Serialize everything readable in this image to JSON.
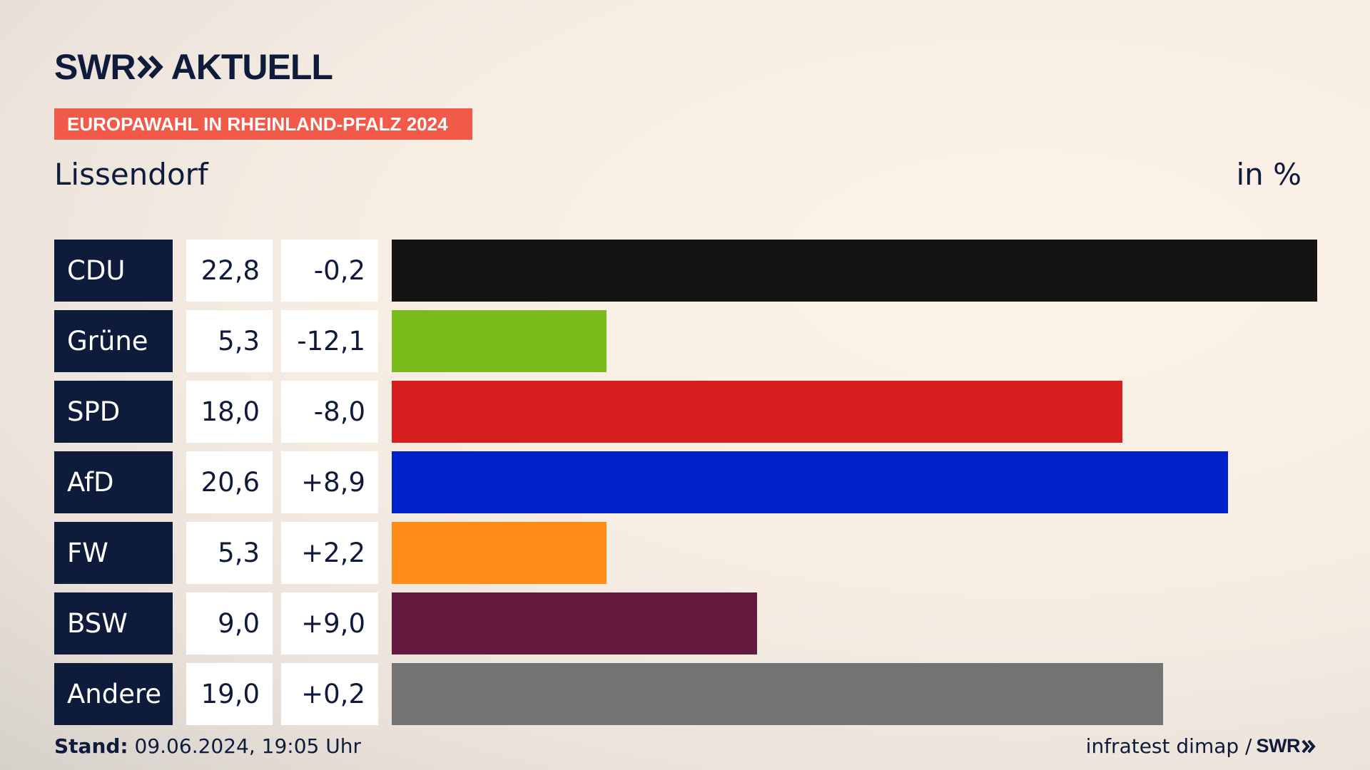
{
  "header": {
    "brand_left": "SWR",
    "brand_right": "AKTUELL",
    "logo_icon": "double-chevron-icon",
    "banner": "EUROPAWAHL IN RHEINLAND-PFALZ 2024",
    "location": "Lissendorf",
    "unit": "in %"
  },
  "colors": {
    "banner": "#f15a48",
    "label_bg": "#0f1b3a",
    "text": "#0f1b3a"
  },
  "chart_data": {
    "type": "bar",
    "orientation": "horizontal",
    "categories": [
      "CDU",
      "Grüne",
      "SPD",
      "AfD",
      "FW",
      "BSW",
      "Andere"
    ],
    "values": [
      22.8,
      5.3,
      18.0,
      20.6,
      5.3,
      9.0,
      19.0
    ],
    "value_labels": [
      "22,8",
      "5,3",
      "18,0",
      "20,6",
      "5,3",
      "9,0",
      "19,0"
    ],
    "diff_labels": [
      "-0,2",
      "-12,1",
      "-8,0",
      "+8,9",
      "+2,2",
      "+9,0",
      "+0,2"
    ],
    "colors": [
      "#141414",
      "#79bd1d",
      "#d71f1f",
      "#0021c8",
      "#fe8c16",
      "#64193e",
      "#737373"
    ],
    "xlim": [
      0,
      22.8
    ],
    "grid": false,
    "legend": "none"
  },
  "footer": {
    "stand_label": "Stand:",
    "stand_value": "09.06.2024, 19:05 Uhr",
    "source": "infratest dimap /",
    "source_brand": "SWR"
  }
}
